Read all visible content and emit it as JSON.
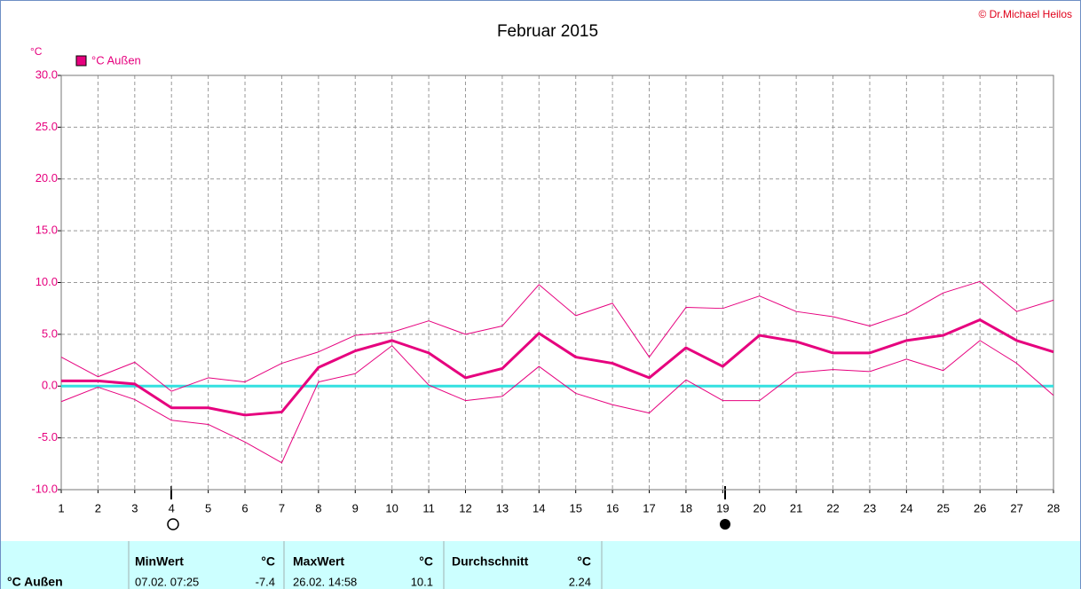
{
  "chart_data": {
    "type": "line",
    "title": "Februar 2015",
    "credit": "© Dr.Michael Heilos",
    "y_label": "°C",
    "x": [
      1,
      2,
      3,
      4,
      5,
      6,
      7,
      8,
      9,
      10,
      11,
      12,
      13,
      14,
      15,
      16,
      17,
      18,
      19,
      20,
      21,
      22,
      23,
      24,
      25,
      26,
      27,
      28
    ],
    "xlim": [
      1,
      28
    ],
    "ylim": [
      -10,
      30
    ],
    "yticks": [
      {
        "value": -10,
        "label": "-10.0"
      },
      {
        "value": -5,
        "label": "-5.0"
      },
      {
        "value": 0,
        "label": "0.0"
      },
      {
        "value": 5,
        "label": "5.0"
      },
      {
        "value": 10,
        "label": "10.0"
      },
      {
        "value": 15,
        "label": "15.0"
      },
      {
        "value": 20,
        "label": "20.0"
      },
      {
        "value": 25,
        "label": "25.0"
      },
      {
        "value": 30,
        "label": "30.0"
      }
    ],
    "grid": true,
    "zero_line_color": "#33e0e0",
    "series": [
      {
        "name": "°C Außen",
        "color": "#e6007e",
        "width": 3,
        "values": [
          0.5,
          0.5,
          0.2,
          -2.1,
          -2.1,
          -2.8,
          -2.5,
          1.8,
          3.4,
          4.4,
          3.2,
          0.8,
          1.7,
          5.1,
          2.8,
          2.2,
          0.8,
          3.7,
          1.9,
          4.9,
          4.3,
          3.2,
          3.2,
          4.4,
          4.9,
          6.4,
          4.4,
          3.3
        ]
      },
      {
        "color": "#e6007e",
        "width": 1,
        "values": [
          2.8,
          0.9,
          2.3,
          -0.5,
          0.8,
          0.4,
          2.2,
          3.3,
          4.9,
          5.2,
          6.3,
          5.0,
          5.8,
          9.8,
          6.8,
          8.0,
          2.8,
          7.6,
          7.5,
          8.7,
          7.2,
          6.7,
          5.8,
          7.0,
          9.0,
          10.1,
          7.2,
          8.3
        ]
      },
      {
        "color": "#e6007e",
        "width": 1,
        "values": [
          -1.5,
          -0.1,
          -1.3,
          -3.3,
          -3.7,
          -5.4,
          -7.4,
          0.4,
          1.2,
          3.9,
          0.1,
          -1.4,
          -1.0,
          1.9,
          -0.7,
          -1.8,
          -2.6,
          0.6,
          -1.4,
          -1.4,
          1.3,
          1.6,
          1.4,
          2.6,
          1.5,
          4.4,
          2.2,
          -0.9
        ]
      }
    ],
    "summary": {
      "headers": [
        "MinWert",
        "°C",
        "MaxWert",
        "°C",
        "Durchschnitt",
        "°C"
      ],
      "row": [
        "°C Außen",
        "07.02. 07:25",
        "-7.4",
        "26.02. 14:58",
        "10.1",
        "2.24"
      ]
    }
  }
}
